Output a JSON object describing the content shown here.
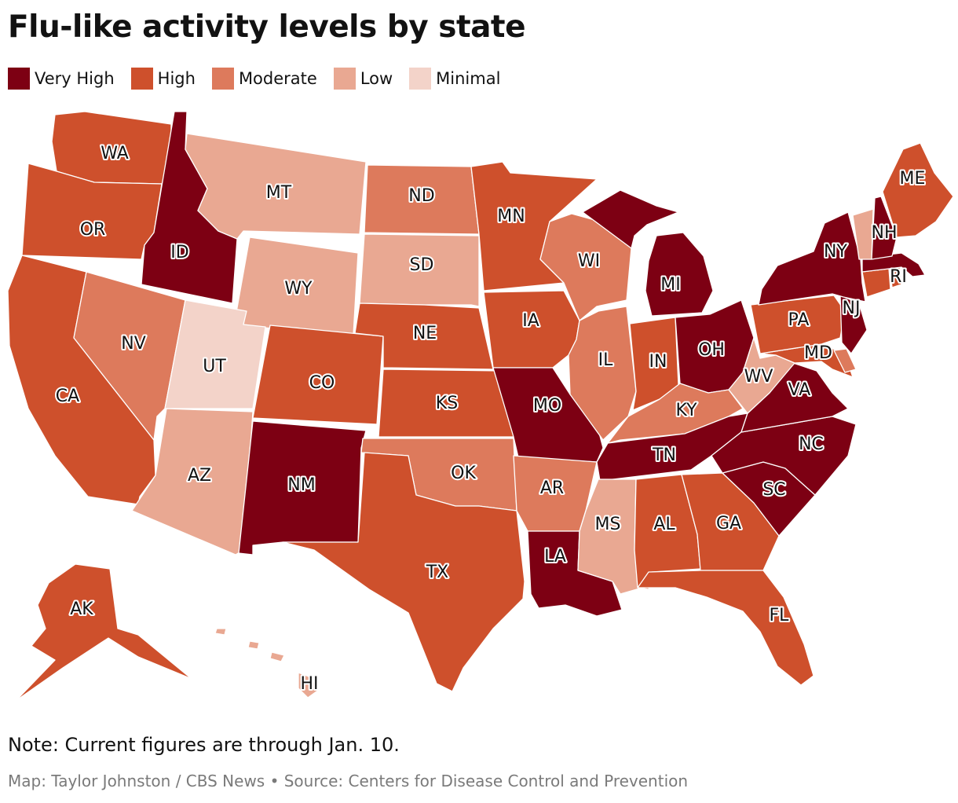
{
  "title": "Flu-like activity levels by state",
  "legend": [
    {
      "key": "very_high",
      "label": "Very High",
      "color": "#7d0013"
    },
    {
      "key": "high",
      "label": "High",
      "color": "#ce502c"
    },
    {
      "key": "moderate",
      "label": "Moderate",
      "color": "#dd7a5c"
    },
    {
      "key": "low",
      "label": "Low",
      "color": "#e9a892"
    },
    {
      "key": "minimal",
      "label": "Minimal",
      "color": "#f3d3c9"
    }
  ],
  "states": [
    {
      "abbr": "WA",
      "level": "high"
    },
    {
      "abbr": "OR",
      "level": "high"
    },
    {
      "abbr": "CA",
      "level": "high"
    },
    {
      "abbr": "ID",
      "level": "very_high"
    },
    {
      "abbr": "NV",
      "level": "moderate"
    },
    {
      "abbr": "MT",
      "level": "low"
    },
    {
      "abbr": "WY",
      "level": "low"
    },
    {
      "abbr": "UT",
      "level": "minimal"
    },
    {
      "abbr": "AZ",
      "level": "low"
    },
    {
      "abbr": "CO",
      "level": "high"
    },
    {
      "abbr": "NM",
      "level": "very_high"
    },
    {
      "abbr": "ND",
      "level": "moderate"
    },
    {
      "abbr": "SD",
      "level": "low"
    },
    {
      "abbr": "NE",
      "level": "high"
    },
    {
      "abbr": "KS",
      "level": "high"
    },
    {
      "abbr": "OK",
      "level": "moderate"
    },
    {
      "abbr": "TX",
      "level": "high"
    },
    {
      "abbr": "MN",
      "level": "high"
    },
    {
      "abbr": "IA",
      "level": "high"
    },
    {
      "abbr": "MO",
      "level": "very_high"
    },
    {
      "abbr": "AR",
      "level": "moderate"
    },
    {
      "abbr": "LA",
      "level": "very_high"
    },
    {
      "abbr": "WI",
      "level": "moderate"
    },
    {
      "abbr": "IL",
      "level": "moderate"
    },
    {
      "abbr": "MI",
      "level": "very_high"
    },
    {
      "abbr": "IN",
      "level": "high"
    },
    {
      "abbr": "OH",
      "level": "very_high"
    },
    {
      "abbr": "KY",
      "level": "moderate"
    },
    {
      "abbr": "TN",
      "level": "very_high"
    },
    {
      "abbr": "MS",
      "level": "low"
    },
    {
      "abbr": "AL",
      "level": "high"
    },
    {
      "abbr": "GA",
      "level": "high"
    },
    {
      "abbr": "FL",
      "level": "high"
    },
    {
      "abbr": "SC",
      "level": "very_high"
    },
    {
      "abbr": "NC",
      "level": "very_high"
    },
    {
      "abbr": "VA",
      "level": "very_high"
    },
    {
      "abbr": "WV",
      "level": "low"
    },
    {
      "abbr": "MD",
      "level": "high"
    },
    {
      "abbr": "DE",
      "level": "moderate"
    },
    {
      "abbr": "PA",
      "level": "high"
    },
    {
      "abbr": "NJ",
      "level": "very_high"
    },
    {
      "abbr": "NY",
      "level": "very_high"
    },
    {
      "abbr": "CT",
      "level": "high"
    },
    {
      "abbr": "RI",
      "level": "high"
    },
    {
      "abbr": "MA",
      "level": "very_high"
    },
    {
      "abbr": "VT",
      "level": "low"
    },
    {
      "abbr": "NH",
      "level": "very_high"
    },
    {
      "abbr": "ME",
      "level": "high"
    },
    {
      "abbr": "AK",
      "level": "high"
    },
    {
      "abbr": "HI",
      "level": "low"
    }
  ],
  "note": "Note: Current figures are through Jan. 10.",
  "credit": "Map: Taylor Johnston / CBS News • Source: Centers for Disease Control and Prevention"
}
